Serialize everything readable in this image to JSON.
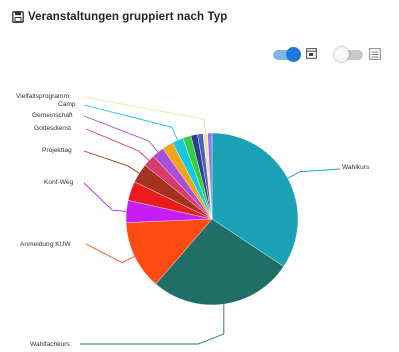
{
  "header": {
    "title": "Veranstaltungen gruppiert nach Typ"
  },
  "controls": {
    "toggle_1": {
      "state": "on",
      "icon": "window-icon"
    },
    "toggle_2": {
      "state": "off",
      "icon": "list-icon"
    }
  },
  "chart_data": {
    "type": "pie",
    "title": "Veranstaltungen gruppiert nach Typ",
    "legend": "none",
    "slices": [
      {
        "label": "Wahlkurs",
        "value": 33.0,
        "color": "#1aa1b5"
      },
      {
        "label": "Wahlfachkurs",
        "value": 26.0,
        "color": "#1f6f68"
      },
      {
        "label": "Anmeldung KUW",
        "value": 12.5,
        "color": "#ff4a12"
      },
      {
        "label": "Konf-Weg",
        "value": 4.0,
        "color": "#c61ef2"
      },
      {
        "label": "",
        "value": 3.5,
        "color": "#e81c1c"
      },
      {
        "label": "Projekttag",
        "value": 3.5,
        "color": "#a5321c"
      },
      {
        "label": "Gottesdienst",
        "value": 2.2,
        "color": "#d93a6e"
      },
      {
        "label": "Gemeinschaft",
        "value": 2.2,
        "color": "#a74fd6"
      },
      {
        "label": "",
        "value": 2.0,
        "color": "#f0a41a"
      },
      {
        "label": "Camp",
        "value": 2.0,
        "color": "#19c7e0"
      },
      {
        "label": "",
        "value": 1.5,
        "color": "#34cf3c"
      },
      {
        "label": "",
        "value": 1.2,
        "color": "#2f3f8a"
      },
      {
        "label": "",
        "value": 1.0,
        "color": "#4763c9"
      },
      {
        "label": "Vielfaltsprogramm",
        "value": 0.8,
        "color": "#f5e3a0"
      },
      {
        "label": "",
        "value": 0.8,
        "color": "#8e7ae8"
      }
    ]
  }
}
